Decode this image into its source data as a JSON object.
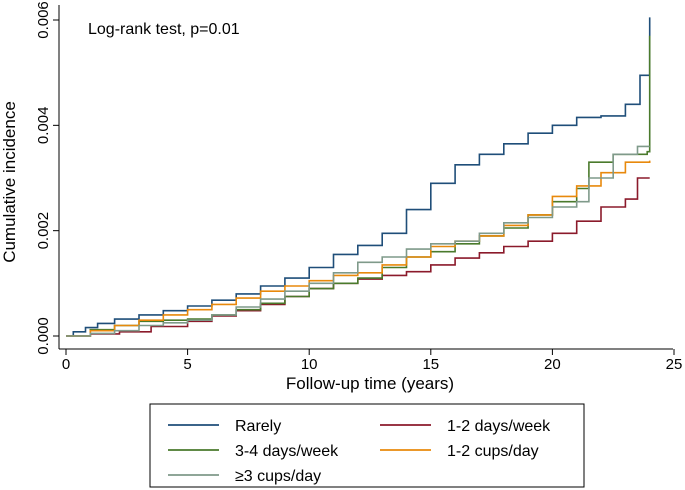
{
  "chart_data": {
    "type": "line",
    "title": "",
    "xlabel": "Follow-up time (years)",
    "ylabel": "Cumulative incidence",
    "xlim": [
      0,
      25
    ],
    "ylim": [
      0,
      0.006
    ],
    "xticks": [
      0,
      5,
      10,
      15,
      20,
      25
    ],
    "yticks": [
      0.0,
      0.002,
      0.004,
      0.006
    ],
    "xtick_labels": [
      "0",
      "5",
      "10",
      "15",
      "20",
      "25"
    ],
    "ytick_labels": [
      "0.000",
      "0.002",
      "0.004",
      "0.006"
    ],
    "grid": false,
    "annotation": "Log-rank test, p=0.01",
    "legend": {
      "position": "bottom",
      "entries": [
        "Rarely",
        "1-2 days/week",
        "3-4 days/week",
        "1-2 cups/day",
        "≥3 cups/day"
      ]
    },
    "series": [
      {
        "name": "Rarely",
        "color": "#1f4e79",
        "points": [
          [
            0,
            0
          ],
          [
            0.3,
            8e-05
          ],
          [
            0.8,
            0.00016
          ],
          [
            1.3,
            0.00024
          ],
          [
            2,
            0.00032
          ],
          [
            3,
            0.0004
          ],
          [
            4,
            0.00048
          ],
          [
            5,
            0.00057
          ],
          [
            6,
            0.00068
          ],
          [
            7,
            0.0008
          ],
          [
            8,
            0.00095
          ],
          [
            9,
            0.0011
          ],
          [
            10,
            0.0013
          ],
          [
            11,
            0.00155
          ],
          [
            12,
            0.00172
          ],
          [
            13,
            0.00195
          ],
          [
            14,
            0.0024
          ],
          [
            15,
            0.0029
          ],
          [
            16,
            0.00325
          ],
          [
            17,
            0.00345
          ],
          [
            18,
            0.00365
          ],
          [
            19,
            0.00385
          ],
          [
            20,
            0.004
          ],
          [
            21,
            0.00415
          ],
          [
            22,
            0.00418
          ],
          [
            23,
            0.0044
          ],
          [
            23.6,
            0.00495
          ],
          [
            24,
            0.00605
          ]
        ]
      },
      {
        "name": "1-2 days/week",
        "color": "#8b1a2b",
        "points": [
          [
            0,
            0
          ],
          [
            1,
            4e-05
          ],
          [
            2.2,
            8e-05
          ],
          [
            3.5,
            0.00018
          ],
          [
            5,
            0.00028
          ],
          [
            6,
            0.00038
          ],
          [
            7,
            0.00048
          ],
          [
            8,
            0.0006
          ],
          [
            9,
            0.00075
          ],
          [
            10,
            0.0009
          ],
          [
            11,
            0.001
          ],
          [
            12,
            0.00108
          ],
          [
            13,
            0.00115
          ],
          [
            14,
            0.00122
          ],
          [
            15,
            0.00135
          ],
          [
            16,
            0.00148
          ],
          [
            17,
            0.00158
          ],
          [
            18,
            0.0017
          ],
          [
            19,
            0.0018
          ],
          [
            20,
            0.00195
          ],
          [
            21,
            0.00218
          ],
          [
            22,
            0.00245
          ],
          [
            23,
            0.0026
          ],
          [
            23.5,
            0.003
          ],
          [
            24,
            0.003
          ]
        ]
      },
      {
        "name": "3-4 days/week",
        "color": "#4a7a2c",
        "points": [
          [
            0,
            0
          ],
          [
            1,
            0.00012
          ],
          [
            2,
            0.0002
          ],
          [
            3,
            0.00028
          ],
          [
            4,
            0.0003
          ],
          [
            5,
            0.00032
          ],
          [
            6,
            0.0004
          ],
          [
            7,
            0.0005
          ],
          [
            8,
            0.00062
          ],
          [
            9,
            0.00075
          ],
          [
            10,
            0.0009
          ],
          [
            11,
            0.001
          ],
          [
            12,
            0.0011
          ],
          [
            13,
            0.0013
          ],
          [
            14,
            0.0015
          ],
          [
            15,
            0.0016
          ],
          [
            16,
            0.00175
          ],
          [
            17,
            0.0019
          ],
          [
            18,
            0.00205
          ],
          [
            19,
            0.0023
          ],
          [
            20,
            0.00255
          ],
          [
            21,
            0.0028
          ],
          [
            21.5,
            0.0033
          ],
          [
            22.5,
            0.00345
          ],
          [
            23.9,
            0.0035
          ],
          [
            24,
            0.0057
          ]
        ]
      },
      {
        "name": "1-2 cups/day",
        "color": "#e8890c",
        "points": [
          [
            0,
            0
          ],
          [
            1,
            0.0001
          ],
          [
            2,
            0.0002
          ],
          [
            3,
            0.0003
          ],
          [
            4,
            0.0004
          ],
          [
            5,
            0.0005
          ],
          [
            6,
            0.0006
          ],
          [
            7,
            0.00072
          ],
          [
            8,
            0.00085
          ],
          [
            9,
            0.00095
          ],
          [
            10,
            0.00105
          ],
          [
            11,
            0.00115
          ],
          [
            12,
            0.0012
          ],
          [
            13,
            0.00135
          ],
          [
            14,
            0.0015
          ],
          [
            15,
            0.0017
          ],
          [
            16,
            0.0018
          ],
          [
            17,
            0.0019
          ],
          [
            18,
            0.0021
          ],
          [
            19,
            0.0023
          ],
          [
            20,
            0.00265
          ],
          [
            21,
            0.00285
          ],
          [
            22,
            0.0031
          ],
          [
            23,
            0.0033
          ],
          [
            24,
            0.00333
          ]
        ]
      },
      {
        "name": "≥3 cups/day",
        "color": "#7f9a8a",
        "points": [
          [
            0,
            0
          ],
          [
            1,
            5e-05
          ],
          [
            2,
            0.0001
          ],
          [
            3,
            0.0002
          ],
          [
            4,
            0.00025
          ],
          [
            5,
            0.0003
          ],
          [
            6,
            0.0004
          ],
          [
            7,
            0.00055
          ],
          [
            8,
            0.0007
          ],
          [
            9,
            0.00085
          ],
          [
            10,
            0.001
          ],
          [
            11,
            0.0012
          ],
          [
            12,
            0.0014
          ],
          [
            13,
            0.0015
          ],
          [
            14,
            0.00165
          ],
          [
            15,
            0.00175
          ],
          [
            16,
            0.0018
          ],
          [
            17,
            0.00195
          ],
          [
            18,
            0.00215
          ],
          [
            19,
            0.00225
          ],
          [
            20,
            0.00245
          ],
          [
            21,
            0.00255
          ],
          [
            21.5,
            0.003
          ],
          [
            22.5,
            0.00345
          ],
          [
            23.5,
            0.0036
          ],
          [
            24,
            0.0036
          ]
        ]
      }
    ]
  }
}
